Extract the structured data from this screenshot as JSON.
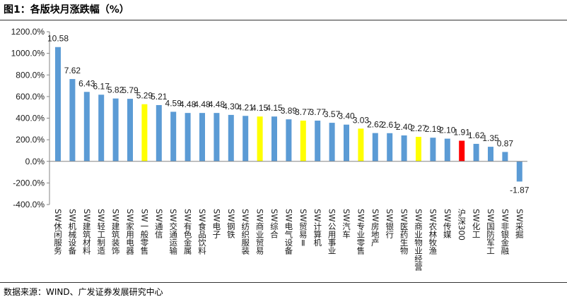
{
  "chart_data": {
    "type": "bar",
    "title": "图1：各版块月涨跌幅（%）",
    "xlabel": "",
    "ylabel": "",
    "categories": [
      "SW休闲服务",
      "SW机械设备",
      "SW建筑材料",
      "SW轻工制造",
      "SW建筑装饰",
      "SW家用电器",
      "SW一般零售",
      "SW通信",
      "SW交通运输",
      "SW有色金属",
      "SW食品饮料",
      "SW电子",
      "SW钢铁",
      "SW纺织服装",
      "SW商业贸易",
      "SW综合",
      "SW电气设备",
      "SW贸易Ⅱ",
      "SW计算机",
      "SW公用事业",
      "SW汽车",
      "SW专业零售",
      "SW房地产",
      "SW银行",
      "SW医药生物",
      "SW商业物业经营",
      "SW农林牧渔",
      "SW传媒",
      "沪深300",
      "SW化工",
      "SW国防军工",
      "SW非银金融",
      "SW采掘"
    ],
    "values": [
      10.58,
      7.62,
      6.43,
      6.17,
      5.82,
      5.79,
      5.29,
      5.21,
      4.59,
      4.48,
      4.48,
      4.48,
      4.3,
      4.21,
      4.15,
      4.15,
      3.89,
      3.77,
      3.77,
      3.57,
      3.4,
      3.03,
      2.62,
      2.61,
      2.4,
      2.27,
      2.19,
      2.1,
      1.91,
      1.62,
      1.35,
      0.87,
      -1.87
    ],
    "bar_colors": [
      "#5B9BD5",
      "#5B9BD5",
      "#5B9BD5",
      "#5B9BD5",
      "#5B9BD5",
      "#5B9BD5",
      "#FFFF00",
      "#5B9BD5",
      "#5B9BD5",
      "#5B9BD5",
      "#5B9BD5",
      "#5B9BD5",
      "#5B9BD5",
      "#5B9BD5",
      "#FFFF00",
      "#5B9BD5",
      "#5B9BD5",
      "#FFFF00",
      "#5B9BD5",
      "#5B9BD5",
      "#5B9BD5",
      "#FFFF00",
      "#5B9BD5",
      "#5B9BD5",
      "#5B9BD5",
      "#FFFF00",
      "#5B9BD5",
      "#5B9BD5",
      "#FF0000",
      "#5B9BD5",
      "#5B9BD5",
      "#5B9BD5",
      "#5B9BD5"
    ],
    "axis_color": "#868686",
    "ylim": [
      -4,
      12
    ],
    "yticks": [
      {
        "value": 12,
        "label": "1200.0%"
      },
      {
        "value": 10,
        "label": "1000.0%"
      },
      {
        "value": 8,
        "label": "800.0%"
      },
      {
        "value": 6,
        "label": "600.0%"
      },
      {
        "value": 4,
        "label": "400.0%"
      },
      {
        "value": 2,
        "label": "200.0%"
      },
      {
        "value": 0,
        "label": "0.0%"
      },
      {
        "value": -2,
        "label": "-200.0%"
      },
      {
        "value": -4,
        "label": "-400.0%"
      }
    ],
    "data_labels": true,
    "grid": false,
    "legend": "none"
  },
  "footer": {
    "source": "数据来源：WIND、广发证券发展研究中心"
  }
}
